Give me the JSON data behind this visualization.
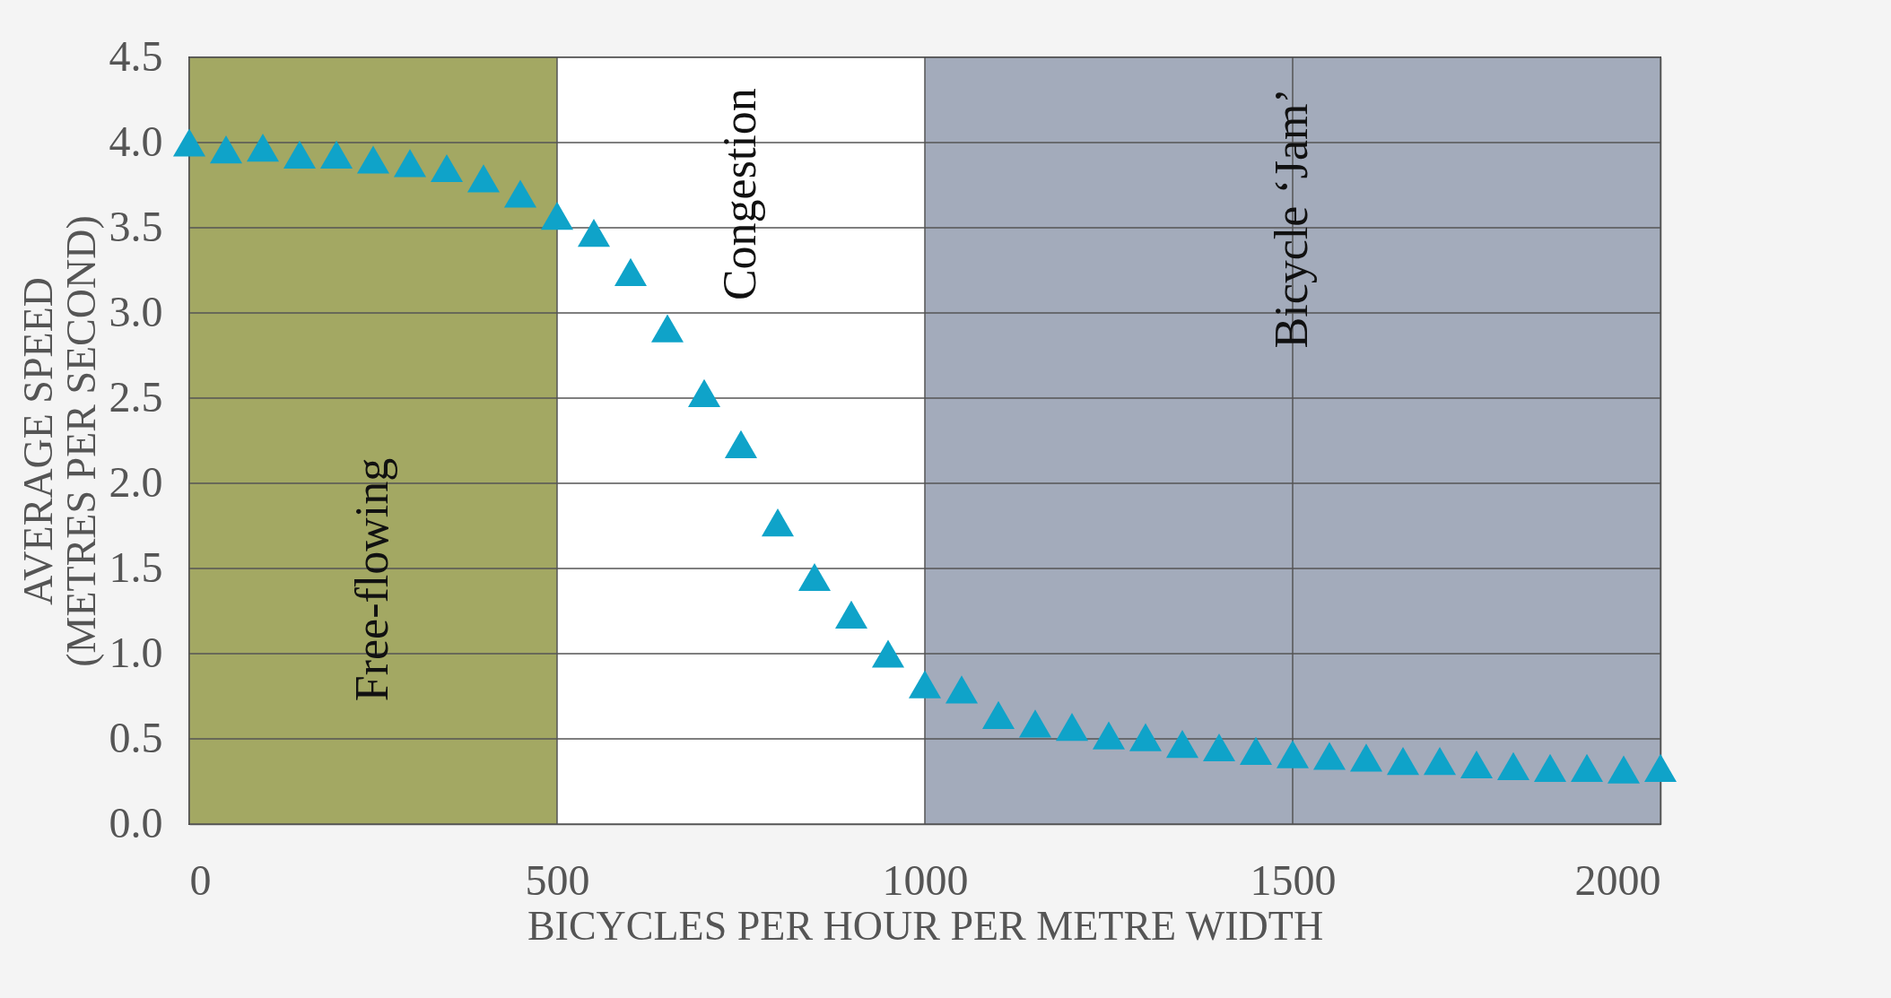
{
  "chart_data": {
    "type": "scatter",
    "xlabel": "BICYCLES PER HOUR PER METRE WIDTH",
    "ylabel": "AVERAGE SPEED (METRES PER SECOND)",
    "x": [
      0,
      50,
      100,
      150,
      200,
      250,
      300,
      350,
      400,
      450,
      500,
      550,
      600,
      650,
      700,
      750,
      800,
      850,
      900,
      950,
      1000,
      1050,
      1100,
      1150,
      1200,
      1250,
      1300,
      1350,
      1400,
      1450,
      1500,
      1550,
      1600,
      1650,
      1700,
      1750,
      1800,
      1850,
      1900,
      1950,
      2000
    ],
    "series": [
      {
        "color": "#0fa3c9",
        "values": [
          4.0,
          3.96,
          3.97,
          3.93,
          3.93,
          3.9,
          3.88,
          3.85,
          3.79,
          3.7,
          3.57,
          3.47,
          3.24,
          2.91,
          2.53,
          2.23,
          1.77,
          1.45,
          1.23,
          1.0,
          0.82,
          0.79,
          0.64,
          0.59,
          0.57,
          0.52,
          0.51,
          0.47,
          0.45,
          0.43,
          0.41,
          0.4,
          0.39,
          0.37,
          0.37,
          0.35,
          0.34,
          0.33,
          0.33,
          0.32,
          0.33
        ]
      }
    ],
    "xlim": [
      0,
      2000
    ],
    "xticks": [
      0,
      500,
      1000,
      1500,
      2000
    ],
    "ylim": [
      0,
      4.5
    ],
    "yticks": [
      {
        "value": 0,
        "label": "0.0"
      },
      0.5,
      {
        "value": 1,
        "label": "1.0"
      },
      1.5,
      {
        "value": 2,
        "label": "2.0"
      },
      2.5,
      {
        "value": 3,
        "label": "3.0"
      },
      3.5,
      {
        "value": 4,
        "label": "4.0"
      },
      4.5
    ],
    "bands": [
      {
        "axis": "x",
        "from": 0,
        "to": 500,
        "label": "Free-flowing",
        "color": "#a3a863"
      },
      {
        "axis": "x",
        "from": 500,
        "to": 1000,
        "label": "Congestion",
        "color": "#ffffff"
      },
      {
        "axis": "x",
        "from": 1000,
        "to": 2000,
        "label": "Bicycle ‘Jam’",
        "color": "#a3abbb"
      }
    ],
    "grid": true,
    "marker": "triangle"
  }
}
